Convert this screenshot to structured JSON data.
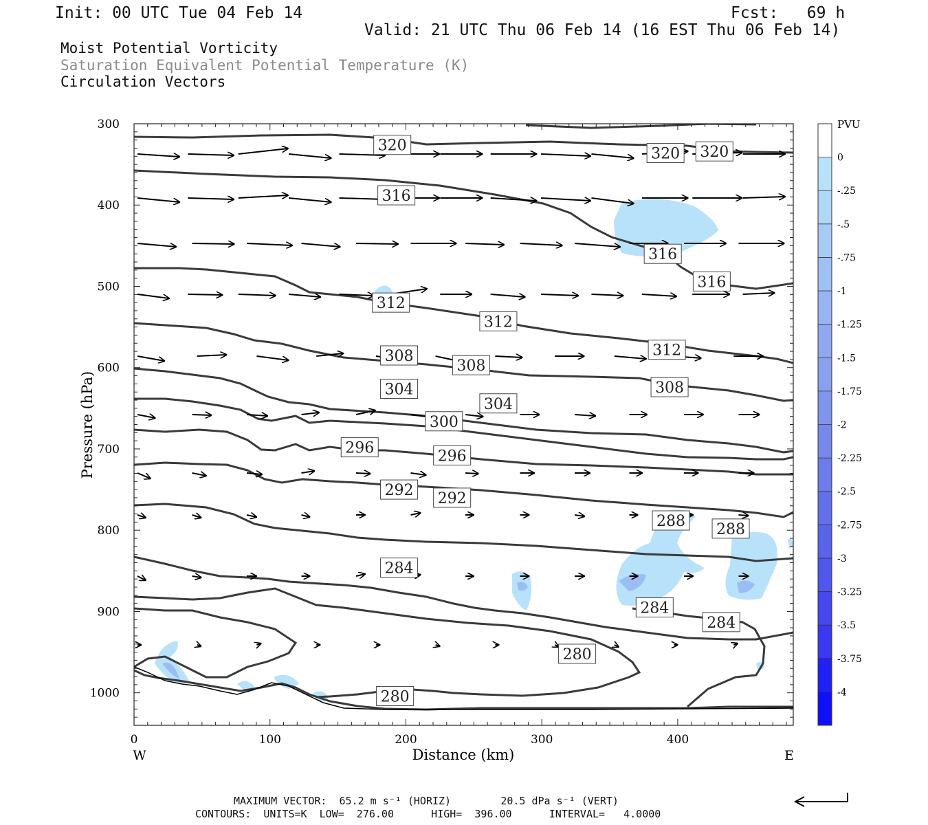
{
  "header": {
    "init": "Init: 00 UTC Tue 04 Feb 14",
    "fcst": "Fcst:   69 h",
    "valid": "Valid: 21 UTC Thu 06 Feb 14 (16 EST Thu 06 Feb 14)"
  },
  "titles": {
    "line1": "Moist Potential Vorticity",
    "line2": "Saturation Equivalent Potential Temperature (K)",
    "line3": "Circulation Vectors"
  },
  "footer": {
    "max_vector_line": "MAXIMUM VECTOR:  65.2 m s⁻¹ (HORIZ)        20.5 dPa s⁻¹ (VERT)",
    "contours_line": "CONTOURS:  UNITS=K  LOW=  276.00      HIGH=  396.00      INTERVAL=   4.0000"
  },
  "colors": {
    "contour": "#3a3a3a",
    "vector": "#000000",
    "mpv_shade_light": "#b8e2fa",
    "mpv_shade_mid": "#9bbdf2"
  },
  "chart_data": {
    "type": "line",
    "xlabel": "Distance (km)",
    "ylabel": "Pressure (hPa)",
    "xlim": [
      0,
      485
    ],
    "ylim": [
      1040,
      300
    ],
    "x_ticks": [
      "0",
      "100",
      "200",
      "300",
      "400"
    ],
    "x_tick_values": [
      0,
      100,
      200,
      300,
      400
    ],
    "y_ticks": [
      "300",
      "400",
      "500",
      "600",
      "700",
      "800",
      "900",
      "1000"
    ],
    "y_tick_values": [
      300,
      400,
      500,
      600,
      700,
      800,
      900,
      1000
    ],
    "x_end_labels": {
      "west": "W",
      "east": "E"
    },
    "contour_labels": [
      {
        "text": "320",
        "x": 190,
        "p": 326
      },
      {
        "text": "320",
        "x": 391,
        "p": 336
      },
      {
        "text": "320",
        "x": 427,
        "p": 334
      },
      {
        "text": "316",
        "x": 193,
        "p": 388
      },
      {
        "text": "316",
        "x": 389,
        "p": 460
      },
      {
        "text": "316",
        "x": 425,
        "p": 494
      },
      {
        "text": "312",
        "x": 189,
        "p": 520
      },
      {
        "text": "312",
        "x": 268,
        "p": 543
      },
      {
        "text": "312",
        "x": 392,
        "p": 578
      },
      {
        "text": "308",
        "x": 195,
        "p": 585
      },
      {
        "text": "308",
        "x": 248,
        "p": 597
      },
      {
        "text": "308",
        "x": 394,
        "p": 624
      },
      {
        "text": "304",
        "x": 195,
        "p": 626
      },
      {
        "text": "304",
        "x": 268,
        "p": 644
      },
      {
        "text": "300",
        "x": 228,
        "p": 666
      },
      {
        "text": "296",
        "x": 166,
        "p": 698
      },
      {
        "text": "296",
        "x": 234,
        "p": 708
      },
      {
        "text": "292",
        "x": 195,
        "p": 750
      },
      {
        "text": "292",
        "x": 234,
        "p": 760
      },
      {
        "text": "288",
        "x": 395,
        "p": 788
      },
      {
        "text": "288",
        "x": 439,
        "p": 798
      },
      {
        "text": "284",
        "x": 195,
        "p": 846
      },
      {
        "text": "284",
        "x": 383,
        "p": 895
      },
      {
        "text": "284",
        "x": 432,
        "p": 913
      },
      {
        "text": "280",
        "x": 326,
        "p": 952
      },
      {
        "text": "280",
        "x": 192,
        "p": 1004
      }
    ],
    "colorbar": {
      "unit": "PVU",
      "labels": [
        "0",
        "-.25",
        "-.5",
        "-.75",
        "-1",
        "-1.25",
        "-1.5",
        "-1.75",
        "-2",
        "-2.25",
        "-2.5",
        "-2.75",
        "-3",
        "-3.25",
        "-3.5",
        "-3.75",
        "-4"
      ],
      "colors": [
        "#ffffff",
        "#b8e2fa",
        "#b0d6f8",
        "#a8cbf6",
        "#a0c0f4",
        "#98b4f2",
        "#90a8f0",
        "#88a0ee",
        "#7f94ec",
        "#7688ea",
        "#6c7cea",
        "#6270ea",
        "#5864ea",
        "#4e58ec",
        "#4448ee",
        "#3a38f0",
        "#2020f8",
        "#1010fc"
      ]
    }
  }
}
